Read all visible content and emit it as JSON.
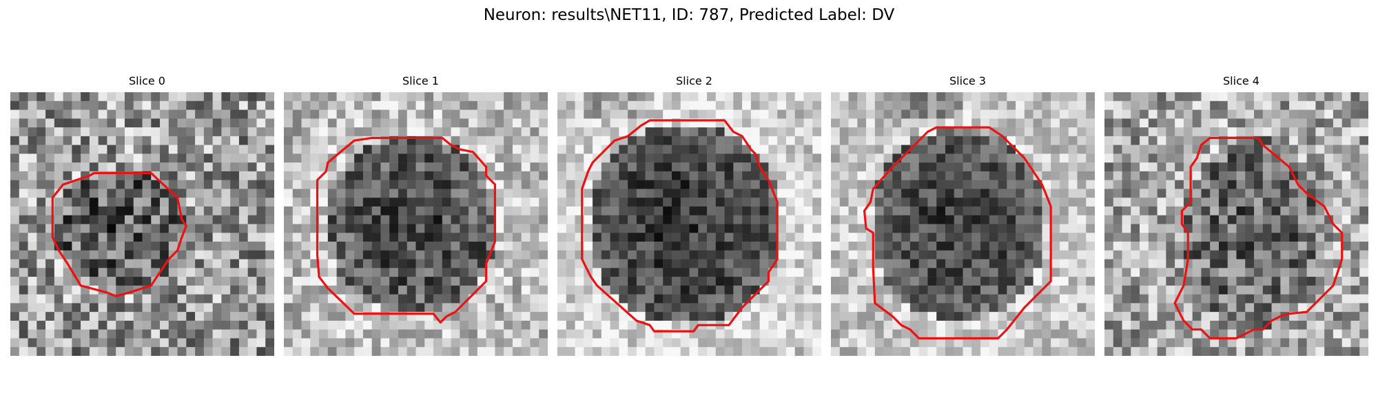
{
  "figure": {
    "title": "Neuron: results\\NET11, ID: 787, Predicted Label: DV",
    "contour_color": "#ee1111"
  },
  "panels": [
    {
      "title": "Slice 0",
      "contour_label": "roi-contour-slice-0"
    },
    {
      "title": "Slice 1",
      "contour_label": "roi-contour-slice-1"
    },
    {
      "title": "Slice 2",
      "contour_label": "roi-contour-slice-2"
    },
    {
      "title": "Slice 3",
      "contour_label": "roi-contour-slice-3"
    },
    {
      "title": "Slice 4",
      "contour_label": "roi-contour-slice-4"
    }
  ]
}
